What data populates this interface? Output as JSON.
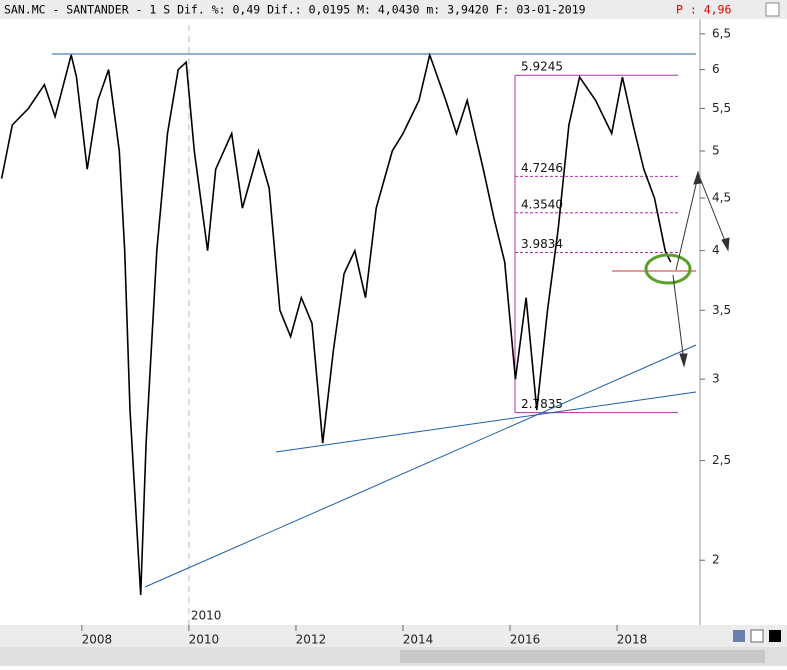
{
  "header": {
    "title": "SAN.MC - SANTANDER - 1 S Dif. %: 0,49 Dif.: 0,0195 M: 4,0430 m: 3,9420 F: 03-01-2019",
    "price": "P : 4,96"
  },
  "chart_data": {
    "type": "line",
    "log_scale": true,
    "xlim": [
      2006.47,
      2019.55
    ],
    "xticks": [
      2008,
      2010,
      2012,
      2014,
      2016,
      2018
    ],
    "marker_label": "2010",
    "ylim": [
      1.73,
      6.63
    ],
    "yticks": [
      2,
      {
        "value": 2.5,
        "label": "2,5"
      },
      3,
      {
        "value": 3.5,
        "label": "3,5"
      },
      4,
      {
        "value": 4.5,
        "label": "4,5"
      },
      5,
      {
        "value": 5.5,
        "label": "5,5"
      },
      6,
      {
        "value": 6.5,
        "label": "6,5"
      }
    ],
    "levels": [
      {
        "value": 5.9245,
        "label": "5.9245"
      },
      {
        "value": 4.7246,
        "label": "4.7246"
      },
      {
        "value": 4.354,
        "label": "4.3540"
      },
      {
        "value": 3.9834,
        "label": "3.9834"
      },
      {
        "value": 2.7835,
        "label": "2.7835"
      }
    ],
    "x": [
      2006.5,
      2006.7,
      2007.0,
      2007.3,
      2007.5,
      2007.8,
      2007.9,
      2008.1,
      2008.3,
      2008.5,
      2008.7,
      2008.8,
      2008.9,
      2009.1,
      2009.2,
      2009.4,
      2009.6,
      2009.8,
      2009.95,
      2010.1,
      2010.35,
      2010.5,
      2010.8,
      2011.0,
      2011.3,
      2011.5,
      2011.7,
      2011.9,
      2012.1,
      2012.3,
      2012.5,
      2012.7,
      2012.9,
      2013.1,
      2013.3,
      2013.5,
      2013.8,
      2014.0,
      2014.3,
      2014.5,
      2014.8,
      2015.0,
      2015.2,
      2015.5,
      2015.7,
      2015.9,
      2016.1,
      2016.3,
      2016.5,
      2016.7,
      2016.9,
      2017.1,
      2017.3,
      2017.6,
      2017.9,
      2018.1,
      2018.3,
      2018.5,
      2018.7,
      2018.9,
      2019.0
    ],
    "series": [
      {
        "color": "#000000",
        "values": [
          4.7,
          5.3,
          5.5,
          5.8,
          5.4,
          6.2,
          5.9,
          4.8,
          5.6,
          6.0,
          5.0,
          4.0,
          2.8,
          1.85,
          2.6,
          4.0,
          5.2,
          6.0,
          6.1,
          5.0,
          4.0,
          4.8,
          5.2,
          4.4,
          5.0,
          4.6,
          3.5,
          3.3,
          3.6,
          3.4,
          2.6,
          3.2,
          3.8,
          4.0,
          3.6,
          4.4,
          5.0,
          5.2,
          5.6,
          6.2,
          5.6,
          5.2,
          5.6,
          4.8,
          4.3,
          3.9,
          3.0,
          3.6,
          2.8,
          3.5,
          4.2,
          5.3,
          5.9,
          5.6,
          5.2,
          5.9,
          5.3,
          4.8,
          4.5,
          4.0,
          3.9
        ]
      }
    ]
  }
}
